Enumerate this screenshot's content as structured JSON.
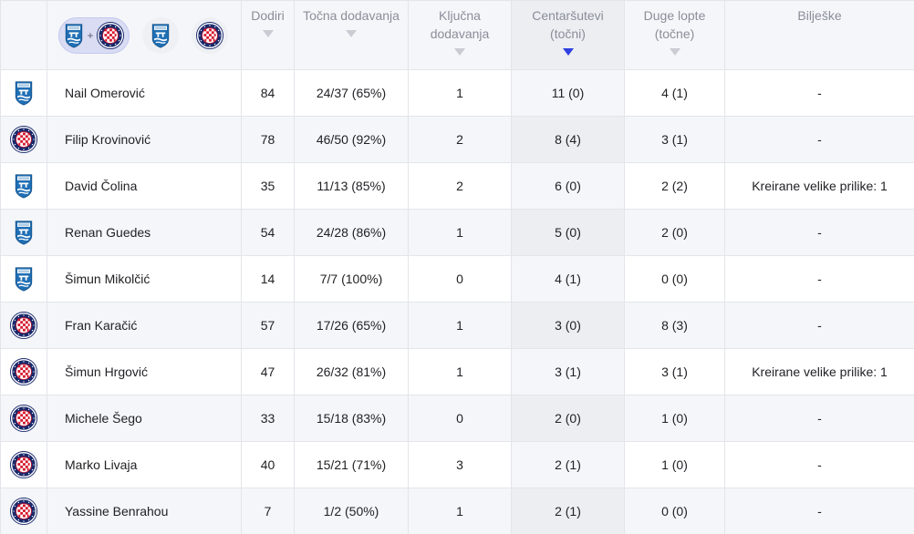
{
  "header": {
    "teams_filter": {
      "combined_label": "+",
      "teams": [
        {
          "name": "osijek-crest-icon",
          "colors": {
            "primary": "#1f6fb5",
            "secondary": "#ffffff"
          }
        },
        {
          "name": "hajduk-crest-icon",
          "colors": {
            "primary": "#1a2a6c",
            "secondary": "#d6152b"
          }
        }
      ]
    },
    "columns": [
      {
        "key": "touches",
        "label": "Dodiri",
        "sorted": false
      },
      {
        "key": "accurate_passes",
        "label": "Točna dodavanja",
        "sorted": false
      },
      {
        "key": "key_passes",
        "label": "Ključna dodavanja",
        "sorted": false
      },
      {
        "key": "crosses",
        "label": "Centaršutevi (točni)",
        "sorted": true
      },
      {
        "key": "long_balls",
        "label": "Duge lopte (točne)",
        "sorted": false
      },
      {
        "key": "notes",
        "label": "Bilješke",
        "sorted": false
      }
    ]
  },
  "accent_color": "#2f3fe0",
  "rows": [
    {
      "team": "osijek",
      "player": "Nail Omerović",
      "touches": "84",
      "accurate_passes": "24/37 (65%)",
      "key_passes": "1",
      "crosses": "11 (0)",
      "long_balls": "4 (1)",
      "notes": "-"
    },
    {
      "team": "hajduk",
      "player": "Filip Krovinović",
      "touches": "78",
      "accurate_passes": "46/50 (92%)",
      "key_passes": "2",
      "crosses": "8 (4)",
      "long_balls": "3 (1)",
      "notes": "-"
    },
    {
      "team": "osijek",
      "player": "David Čolina",
      "touches": "35",
      "accurate_passes": "11/13 (85%)",
      "key_passes": "2",
      "crosses": "6 (0)",
      "long_balls": "2 (2)",
      "notes": "Kreirane velike prilike: 1"
    },
    {
      "team": "osijek",
      "player": "Renan Guedes",
      "touches": "54",
      "accurate_passes": "24/28 (86%)",
      "key_passes": "1",
      "crosses": "5 (0)",
      "long_balls": "2 (0)",
      "notes": "-"
    },
    {
      "team": "osijek",
      "player": "Šimun Mikolčić",
      "touches": "14",
      "accurate_passes": "7/7 (100%)",
      "key_passes": "0",
      "crosses": "4 (1)",
      "long_balls": "0 (0)",
      "notes": "-"
    },
    {
      "team": "hajduk",
      "player": "Fran Karačić",
      "touches": "57",
      "accurate_passes": "17/26 (65%)",
      "key_passes": "1",
      "crosses": "3 (0)",
      "long_balls": "8 (3)",
      "notes": "-"
    },
    {
      "team": "hajduk",
      "player": "Šimun Hrgović",
      "touches": "47",
      "accurate_passes": "26/32 (81%)",
      "key_passes": "1",
      "crosses": "3 (1)",
      "long_balls": "3 (1)",
      "notes": "Kreirane velike prilike: 1"
    },
    {
      "team": "hajduk",
      "player": "Michele Šego",
      "touches": "33",
      "accurate_passes": "15/18 (83%)",
      "key_passes": "0",
      "crosses": "2 (0)",
      "long_balls": "1 (0)",
      "notes": "-"
    },
    {
      "team": "hajduk",
      "player": "Marko Livaja",
      "touches": "40",
      "accurate_passes": "15/21 (71%)",
      "key_passes": "3",
      "crosses": "2 (1)",
      "long_balls": "1 (0)",
      "notes": "-"
    },
    {
      "team": "hajduk",
      "player": "Yassine Benrahou",
      "touches": "7",
      "accurate_passes": "1/2 (50%)",
      "key_passes": "1",
      "crosses": "2 (1)",
      "long_balls": "0 (0)",
      "notes": "-"
    }
  ]
}
